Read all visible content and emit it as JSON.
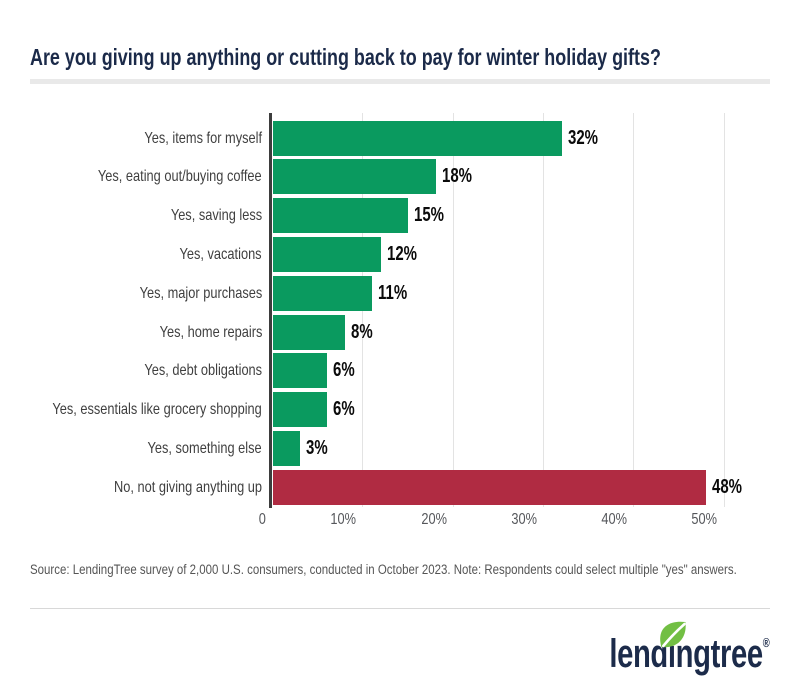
{
  "header": {
    "title": "Are you giving up anything or cutting back to pay for winter holiday gifts?"
  },
  "chart_data": {
    "type": "bar",
    "orientation": "horizontal",
    "title": "Are you giving up anything or cutting back to pay for winter holiday gifts?",
    "categories": [
      "Yes, items for myself",
      "Yes, eating out/buying coffee",
      "Yes, saving less",
      "Yes, vacations",
      "Yes, major purchases",
      "Yes, home repairs",
      "Yes, debt obligations",
      "Yes, essentials like grocery shopping",
      "Yes, something else",
      "No, not giving anything up"
    ],
    "values": [
      32,
      18,
      15,
      12,
      11,
      8,
      6,
      6,
      3,
      48
    ],
    "value_labels": [
      "32%",
      "18%",
      "15%",
      "12%",
      "11%",
      "8%",
      "6%",
      "6%",
      "3%",
      "48%"
    ],
    "bar_colors": [
      "#0a9a5f",
      "#0a9a5f",
      "#0a9a5f",
      "#0a9a5f",
      "#0a9a5f",
      "#0a9a5f",
      "#0a9a5f",
      "#0a9a5f",
      "#0a9a5f",
      "#b02b42"
    ],
    "yes_color": "#0a9a5f",
    "no_color": "#b02b42",
    "xlabel": "",
    "ylabel": "",
    "xlim": [
      0,
      55
    ],
    "grid": true,
    "gridline_color": "#e3e3e3",
    "axis_color": "#3d3d3d",
    "x_ticks": [
      {
        "value": 0,
        "label": "0"
      },
      {
        "value": 10,
        "label": "10%"
      },
      {
        "value": 20,
        "label": "20%"
      },
      {
        "value": 30,
        "label": "30%"
      },
      {
        "value": 40,
        "label": "40%"
      },
      {
        "value": 50,
        "label": "50%"
      }
    ],
    "legend": "none"
  },
  "footer": {
    "source": "Source: LendingTree survey of 2,000 U.S. consumers, conducted in October 2023. Note: Respondents could select multiple \"yes\" answers."
  },
  "logo": {
    "part1": "lend",
    "dotless_i": "ı",
    "part2": "ngtree",
    "reg": "®",
    "text_color": "#1c2b4a",
    "leaf_color": "#72bf44"
  }
}
